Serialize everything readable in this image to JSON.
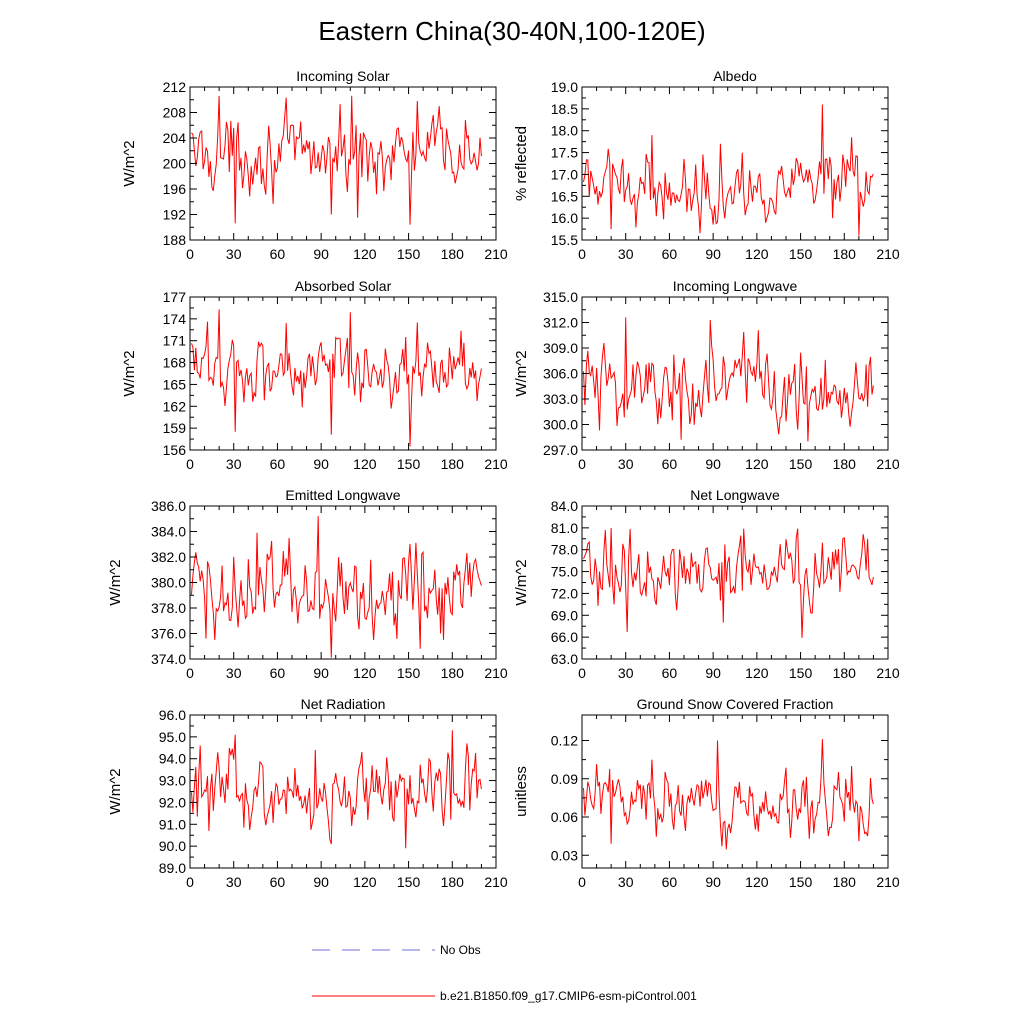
{
  "figure": {
    "title": "Eastern China(30-40N,100-120E)",
    "legend": [
      {
        "label": "No Obs",
        "color": "#6f6fd8",
        "style": "dashed"
      },
      {
        "label": "b.e21.B1850.f09_g17.CMIP6-esm-piControl.001",
        "color": "#ff0000",
        "style": "solid"
      }
    ]
  },
  "chart_data": [
    {
      "type": "line",
      "title": "Incoming Solar",
      "ylabel": "W/m^2",
      "xlim": [
        0,
        210
      ],
      "ylim": [
        188,
        212
      ],
      "xticks": [
        0,
        30,
        60,
        90,
        120,
        150,
        180,
        210
      ],
      "yticks": [
        188,
        192,
        196,
        200,
        204,
        208,
        212
      ],
      "ytick_labels": [
        "188",
        "192",
        "196",
        "200",
        "204",
        "208",
        "212"
      ],
      "series": [
        {
          "name": "b.e21.B1850.f09_g17.CMIP6-esm-piControl.001",
          "x_start": 1,
          "x_end": 200,
          "mean": 201.5,
          "spread": 2.6,
          "highlights": [
            [
              20,
              210.6
            ],
            [
              31,
              190.6
            ],
            [
              111,
              210.6
            ],
            [
              151,
              190.4
            ],
            [
              115,
              191.5
            ],
            [
              97,
              192.0
            ],
            [
              171,
              209.0
            ],
            [
              156,
              209.8
            ]
          ]
        }
      ]
    },
    {
      "type": "line",
      "title": "Albedo",
      "ylabel": "% reflected",
      "xlim": [
        0,
        210
      ],
      "ylim": [
        15.5,
        19.0
      ],
      "xticks": [
        0,
        30,
        60,
        90,
        120,
        150,
        180,
        210
      ],
      "yticks": [
        15.5,
        16.0,
        16.5,
        17.0,
        17.5,
        18.0,
        18.5,
        19.0
      ],
      "ytick_labels": [
        "15.5",
        "16.0",
        "16.5",
        "17.0",
        "17.5",
        "18.0",
        "18.5",
        "19.0"
      ],
      "series": [
        {
          "name": "b.e21.B1850.f09_g17.CMIP6-esm-piControl.001",
          "x_start": 1,
          "x_end": 200,
          "mean": 16.7,
          "spread": 0.33,
          "highlights": [
            [
              165,
              18.6
            ],
            [
              48,
              17.9
            ],
            [
              185,
              17.85
            ],
            [
              190,
              15.6
            ],
            [
              20,
              15.75
            ],
            [
              172,
              16.0
            ],
            [
              110,
              17.5
            ],
            [
              95,
              17.7
            ]
          ]
        }
      ]
    },
    {
      "type": "line",
      "title": "Absorbed Solar",
      "ylabel": "W/m^2",
      "xlim": [
        0,
        210
      ],
      "ylim": [
        156,
        177
      ],
      "xticks": [
        0,
        30,
        60,
        90,
        120,
        150,
        180,
        210
      ],
      "yticks": [
        156,
        159,
        162,
        165,
        168,
        171,
        174,
        177
      ],
      "ytick_labels": [
        "156",
        "159",
        "162",
        "165",
        "168",
        "171",
        "174",
        "177"
      ],
      "series": [
        {
          "name": "b.e21.B1850.f09_g17.CMIP6-esm-piControl.001",
          "x_start": 1,
          "x_end": 200,
          "mean": 167.2,
          "spread": 2.3,
          "highlights": [
            [
              20,
              175.3
            ],
            [
              31,
              158.5
            ],
            [
              151,
              156.5
            ],
            [
              110,
              174.9
            ],
            [
              97,
              158.1
            ],
            [
              156,
              173.5
            ],
            [
              66,
              173.4
            ]
          ]
        }
      ]
    },
    {
      "type": "line",
      "title": "Incoming Longwave",
      "ylabel": "W/m^2",
      "xlim": [
        0,
        210
      ],
      "ylim": [
        297.0,
        315.0
      ],
      "xticks": [
        0,
        30,
        60,
        90,
        120,
        150,
        180,
        210
      ],
      "yticks": [
        297,
        300,
        303,
        306,
        309,
        312,
        315
      ],
      "ytick_labels": [
        "297.0",
        "300.0",
        "303.0",
        "306.0",
        "309.0",
        "312.0",
        "315.0"
      ],
      "series": [
        {
          "name": "b.e21.B1850.f09_g17.CMIP6-esm-piControl.001",
          "x_start": 1,
          "x_end": 200,
          "mean": 304.8,
          "spread": 2.4,
          "highlights": [
            [
              30,
              312.6
            ],
            [
              88,
              312.3
            ],
            [
              155,
              298.0
            ],
            [
              68,
              298.2
            ],
            [
              121,
              311.1
            ],
            [
              62,
              300.5
            ],
            [
              12,
              299.3
            ]
          ]
        }
      ]
    },
    {
      "type": "line",
      "title": "Emitted Longwave",
      "ylabel": "W/m^2",
      "xlim": [
        0,
        210
      ],
      "ylim": [
        374.0,
        386.0
      ],
      "xticks": [
        0,
        30,
        60,
        90,
        120,
        150,
        180,
        210
      ],
      "yticks": [
        374,
        376,
        378,
        380,
        382,
        384,
        386
      ],
      "ytick_labels": [
        "374.0",
        "376.0",
        "378.0",
        "380.0",
        "382.0",
        "384.0",
        "386.0"
      ],
      "series": [
        {
          "name": "b.e21.B1850.f09_g17.CMIP6-esm-piControl.001",
          "x_start": 1,
          "x_end": 200,
          "mean": 379.5,
          "spread": 1.6,
          "highlights": [
            [
              88,
              385.2
            ],
            [
              97,
              374.1
            ],
            [
              46,
              383.9
            ],
            [
              158,
              374.8
            ],
            [
              174,
              375.5
            ],
            [
              11,
              375.6
            ],
            [
              68,
              383.5
            ]
          ]
        }
      ]
    },
    {
      "type": "line",
      "title": "Net Longwave",
      "ylabel": "W/m^2",
      "xlim": [
        0,
        210
      ],
      "ylim": [
        63.0,
        84.0
      ],
      "xticks": [
        0,
        30,
        60,
        90,
        120,
        150,
        180,
        210
      ],
      "yticks": [
        63,
        66,
        69,
        72,
        75,
        78,
        81,
        84
      ],
      "ytick_labels": [
        "63.0",
        "66.0",
        "69.0",
        "72.0",
        "75.0",
        "78.0",
        "81.0",
        "84.0"
      ],
      "series": [
        {
          "name": "b.e21.B1850.f09_g17.CMIP6-esm-piControl.001",
          "x_start": 1,
          "x_end": 200,
          "mean": 75.0,
          "spread": 2.1,
          "highlights": [
            [
              31,
              66.7
            ],
            [
              151,
              65.9
            ],
            [
              20,
              81.0
            ],
            [
              111,
              80.9
            ],
            [
              148,
              80.9
            ],
            [
              97,
              68.0
            ],
            [
              196,
              79.5
            ]
          ]
        }
      ]
    },
    {
      "type": "line",
      "title": "Net Radiation",
      "ylabel": "W/m^2",
      "xlim": [
        0,
        210
      ],
      "ylim": [
        89.0,
        96.0
      ],
      "xticks": [
        0,
        30,
        60,
        90,
        120,
        150,
        180,
        210
      ],
      "yticks": [
        89,
        90,
        91,
        92,
        93,
        94,
        95,
        96
      ],
      "ytick_labels": [
        "89.0",
        "90.0",
        "91.0",
        "92.0",
        "93.0",
        "94.0",
        "95.0",
        "96.0"
      ],
      "series": [
        {
          "name": "b.e21.B1850.f09_g17.CMIP6-esm-piControl.001",
          "x_start": 1,
          "x_end": 200,
          "mean": 92.5,
          "spread": 0.75,
          "highlights": [
            [
              180,
              95.3
            ],
            [
              31,
              95.1
            ],
            [
              148,
              89.9
            ],
            [
              97,
              90.1
            ],
            [
              13,
              90.7
            ],
            [
              190,
              94.7
            ],
            [
              86,
              94.4
            ]
          ]
        }
      ]
    },
    {
      "type": "line",
      "title": "Ground Snow Covered Fraction",
      "ylabel": "unitless",
      "xlim": [
        0,
        210
      ],
      "ylim": [
        0.02,
        0.14
      ],
      "xticks": [
        0,
        30,
        60,
        90,
        120,
        150,
        180,
        210
      ],
      "yticks": [
        0.03,
        0.06,
        0.09,
        0.12
      ],
      "ytick_labels": [
        "0.03",
        "0.06",
        "0.09",
        "0.12"
      ],
      "series": [
        {
          "name": "b.e21.B1850.f09_g17.CMIP6-esm-piControl.001",
          "x_start": 1,
          "x_end": 200,
          "mean": 0.071,
          "spread": 0.011,
          "highlights": [
            [
              165,
              0.121
            ],
            [
              93,
              0.12
            ],
            [
              20,
              0.039
            ],
            [
              190,
              0.041
            ],
            [
              48,
              0.105
            ],
            [
              185,
              0.1
            ],
            [
              156,
              0.043
            ]
          ]
        }
      ]
    }
  ]
}
